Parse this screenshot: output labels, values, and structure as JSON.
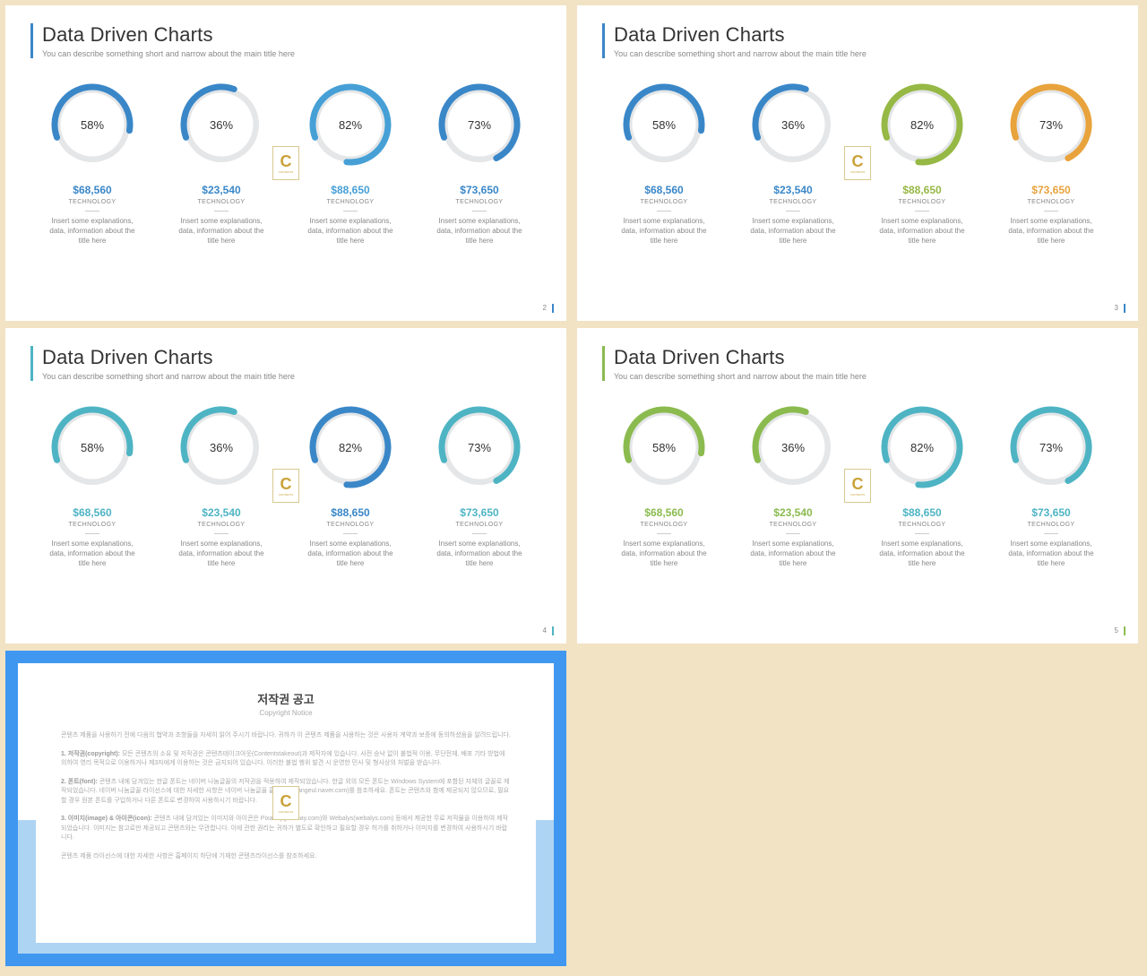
{
  "global": {
    "slide_title": "Data Driven Charts",
    "slide_subtitle": "You can describe something short and narrow about the main title here",
    "category_label": "TECHNOLOGY",
    "desc_line1": "Insert some explanations,",
    "desc_line2": "data, information about the",
    "desc_line3": "title here",
    "donut_bg": "#e4e6e8",
    "donut_stroke_width": 7,
    "donut_radius": 42
  },
  "slides": [
    {
      "page": "2",
      "accent": "#3a87c8",
      "items": [
        {
          "pct": 58,
          "pct_label": "58%",
          "price": "$68,560",
          "color": "#3a87c8"
        },
        {
          "pct": 36,
          "pct_label": "36%",
          "price": "$23,540",
          "color": "#3a87c8"
        },
        {
          "pct": 82,
          "pct_label": "82%",
          "price": "$88,650",
          "color": "#46a0d6"
        },
        {
          "pct": 73,
          "pct_label": "73%",
          "price": "$73,650",
          "color": "#3a87c8"
        }
      ]
    },
    {
      "page": "3",
      "accent": "#3a87c8",
      "items": [
        {
          "pct": 58,
          "pct_label": "58%",
          "price": "$68,560",
          "color": "#3a87c8"
        },
        {
          "pct": 36,
          "pct_label": "36%",
          "price": "$23,540",
          "color": "#3a87c8"
        },
        {
          "pct": 82,
          "pct_label": "82%",
          "price": "$88,650",
          "color": "#96b845"
        },
        {
          "pct": 73,
          "pct_label": "73%",
          "price": "$73,650",
          "color": "#e8a33c"
        }
      ]
    },
    {
      "page": "4",
      "accent": "#4eb4c4",
      "items": [
        {
          "pct": 58,
          "pct_label": "58%",
          "price": "$68,560",
          "color": "#4eb4c4"
        },
        {
          "pct": 36,
          "pct_label": "36%",
          "price": "$23,540",
          "color": "#4eb4c4"
        },
        {
          "pct": 82,
          "pct_label": "82%",
          "price": "$88,650",
          "color": "#3a87c8"
        },
        {
          "pct": 73,
          "pct_label": "73%",
          "price": "$73,650",
          "color": "#4eb4c4"
        }
      ]
    },
    {
      "page": "5",
      "accent": "#8bbb4f",
      "items": [
        {
          "pct": 58,
          "pct_label": "58%",
          "price": "$68,560",
          "color": "#8bbb4f"
        },
        {
          "pct": 36,
          "pct_label": "36%",
          "price": "$23,540",
          "color": "#8bbb4f"
        },
        {
          "pct": 82,
          "pct_label": "82%",
          "price": "$88,650",
          "color": "#4eb4c4"
        },
        {
          "pct": 73,
          "pct_label": "73%",
          "price": "$73,650",
          "color": "#4eb4c4"
        }
      ]
    }
  ],
  "copyright": {
    "title": "저작권 공고",
    "subtitle": "Copyright Notice",
    "paras": [
      "콘텐츠 제품을 사용하기 전에 다음의 협약과 조항들을 자세히 읽어 주시기 바랍니다. 귀하가 이 콘텐츠 제품을 사용하는 것은 사용자 계약과 보증에 동의하셨음을 알려드립니다.",
      "<b>1. 저작권(copyright):</b> 모든 콘텐츠의 소유 및 저작권은 콘텐츠테이크아웃(Contentstakeout)과 제작자에 있습니다. 사전 승낙 없이 불법적 이용, 무단전재, 배포 기타 방법에 의하여 영리 목적으로 이용하거나 제3자에게 이용하는 것은 금지되어 있습니다. 이러한 불법 행위 발견 시 운영한 민사 및 형사상의 처벌을 받습니다.",
      "<b>2. 폰트(font):</b> 콘텐츠 내에 담겨있는 한글 폰트는 네이버 나눔글꼴의 저작권을 적용하여 제작되었습니다. 한글 외의 모든 폰트는 Windows System에 포함된 자체의 글꼴로 제작되었습니다. 네이버 나눔글꼴 라이선스에 대한 자세한 사항은 네이버 나눔글꼴 홈페이지(hangeul.naver.com)를 참조하세요. 폰트는 콘텐츠와 함께 제공되지 않으므로, 필요할 경우 원본 폰트를 구입하거나 다른 폰트로 변경하여 사용하시기 바랍니다.",
      "<b>3. 이미지(image) & 아이콘(icon):</b> 콘텐츠 내에 담겨있는 이미지와 아이콘은 Pixabay(pixabay.com)와 Webalys(webalys.com) 등에서 제공한 무료 저작물을 이용하여 제작되었습니다. 이미지는 참고로만 제공되고 콘텐츠와는 무관합니다. 이에 관한 권리는 귀하가 별도로 확인하고 필요할 경우 허가를 취하거나 이미지를 변경하여 사용하시기 바랍니다.",
      "콘텐츠 제품 라이선스에 대한 자세한 사항은 홈페이지 하단에 기재한 콘텐츠라이선스를 참조하세요."
    ]
  }
}
